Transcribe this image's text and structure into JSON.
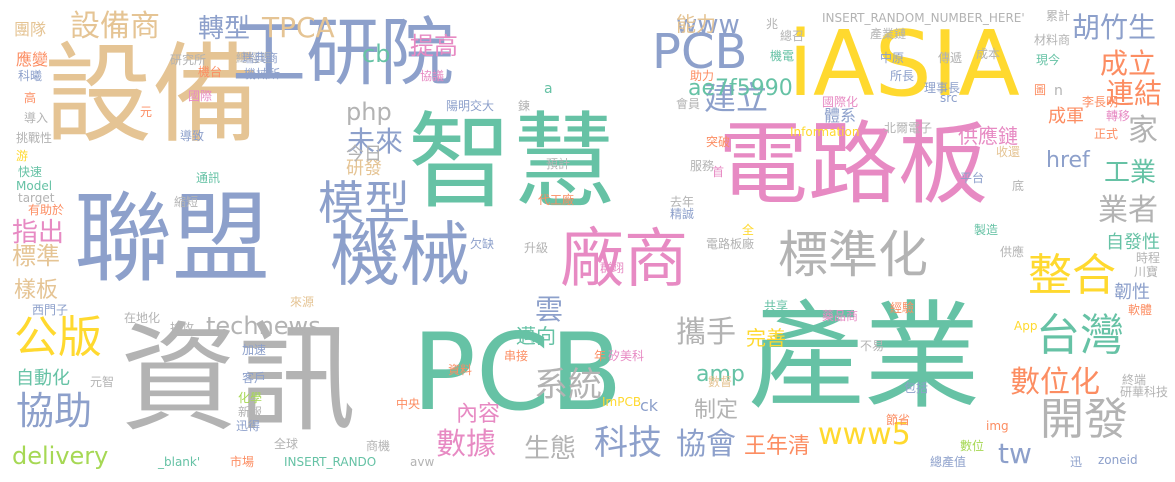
{
  "palette": {
    "green": "#66c2a5",
    "orange": "#fc8d62",
    "blue": "#8da0cb",
    "pink": "#e78ac3",
    "lime": "#a6d854",
    "yellow": "#ffd92f",
    "tan": "#e5c494",
    "gray": "#b3b3b3"
  },
  "words": [
    {
      "id": "w1",
      "text": "智慧",
      "color": "green"
    },
    {
      "id": "w2",
      "text": "電路板",
      "color": "pink"
    },
    {
      "id": "w3",
      "text": "PCB",
      "color": "green"
    },
    {
      "id": "w4",
      "text": "產業",
      "color": "green"
    },
    {
      "id": "w5",
      "text": "設備",
      "color": "tan"
    },
    {
      "id": "w6",
      "text": "資訊",
      "color": "gray"
    },
    {
      "id": "w7",
      "text": "聯盟",
      "color": "blue"
    },
    {
      "id": "w8",
      "text": "iASIA",
      "color": "yellow"
    },
    {
      "id": "w9",
      "text": "工研院",
      "color": "blue"
    },
    {
      "id": "w10",
      "text": "機械",
      "color": "blue"
    },
    {
      "id": "w11",
      "text": "廠商",
      "color": "pink"
    },
    {
      "id": "w12",
      "text": "標準化",
      "color": "gray"
    },
    {
      "id": "w13",
      "text": "PCB",
      "color": "blue"
    },
    {
      "id": "w14",
      "text": "模型",
      "color": "blue"
    },
    {
      "id": "w15",
      "text": "整合",
      "color": "yellow"
    },
    {
      "id": "w16",
      "text": "台灣",
      "color": "green"
    },
    {
      "id": "w17",
      "text": "公版",
      "color": "yellow"
    },
    {
      "id": "w18",
      "text": "開發",
      "color": "gray"
    },
    {
      "id": "w19",
      "text": "協助",
      "color": "blue"
    },
    {
      "id": "w20",
      "text": "設備商",
      "color": "tan"
    },
    {
      "id": "w21",
      "text": "TPCA",
      "color": "tan"
    },
    {
      "id": "w22",
      "text": "轉型",
      "color": "blue"
    },
    {
      "id": "w23",
      "text": "胡竹生",
      "color": "blue"
    },
    {
      "id": "w24",
      "text": "成立",
      "color": "orange"
    },
    {
      "id": "w25",
      "text": "連結",
      "color": "orange"
    },
    {
      "id": "w26",
      "text": "家",
      "color": "gray"
    },
    {
      "id": "w27",
      "text": "業者",
      "color": "gray"
    },
    {
      "id": "w28",
      "text": "工業",
      "color": "green"
    },
    {
      "id": "w29",
      "text": "www",
      "color": "blue"
    },
    {
      "id": "w30",
      "text": "建立",
      "color": "blue"
    },
    {
      "id": "w31",
      "text": "未來",
      "color": "blue"
    },
    {
      "id": "w32",
      "text": "technews",
      "color": "gray"
    },
    {
      "id": "w33",
      "text": "系統",
      "color": "gray"
    },
    {
      "id": "w34",
      "text": "攜手",
      "color": "gray"
    },
    {
      "id": "w35",
      "text": "數位化",
      "color": "orange"
    },
    {
      "id": "w36",
      "text": "數據",
      "color": "pink"
    },
    {
      "id": "w37",
      "text": "科技",
      "color": "blue"
    },
    {
      "id": "w38",
      "text": "協會",
      "color": "blue"
    },
    {
      "id": "w39",
      "text": "生態",
      "color": "gray"
    },
    {
      "id": "w40",
      "text": "www5",
      "color": "yellow"
    },
    {
      "id": "w41",
      "text": "tw",
      "color": "blue"
    },
    {
      "id": "w42",
      "text": "王年清",
      "color": "orange"
    },
    {
      "id": "w43",
      "text": "delivery",
      "color": "lime"
    },
    {
      "id": "w44",
      "text": "指出",
      "color": "pink"
    },
    {
      "id": "w45",
      "text": "標準",
      "color": "tan"
    },
    {
      "id": "w46",
      "text": "cb",
      "color": "green"
    },
    {
      "id": "w47",
      "text": "提高",
      "color": "pink"
    },
    {
      "id": "w48",
      "text": "ae7f5990",
      "color": "green"
    },
    {
      "id": "w49",
      "text": "php",
      "color": "gray"
    },
    {
      "id": "w50",
      "text": "雲",
      "color": "blue"
    },
    {
      "id": "w51",
      "text": "內容",
      "color": "pink"
    },
    {
      "id": "w52",
      "text": "制定",
      "color": "gray"
    },
    {
      "id": "w53",
      "text": "amp",
      "color": "green"
    },
    {
      "id": "w54",
      "text": "供應鏈",
      "color": "pink"
    },
    {
      "id": "w55",
      "text": "成軍",
      "color": "orange"
    },
    {
      "id": "w56",
      "text": "href",
      "color": "blue"
    },
    {
      "id": "w57",
      "text": "韌性",
      "color": "blue"
    },
    {
      "id": "w58",
      "text": "自發性",
      "color": "green"
    },
    {
      "id": "w59",
      "text": "樣板",
      "color": "tan"
    },
    {
      "id": "w60",
      "text": "自動化",
      "color": "green"
    },
    {
      "id": "w61",
      "text": "能力",
      "color": "tan"
    },
    {
      "id": "w62",
      "text": "研發",
      "color": "tan"
    },
    {
      "id": "w63",
      "text": "邁向",
      "color": "green"
    },
    {
      "id": "w64",
      "text": "完善",
      "color": "yellow"
    },
    {
      "id": "w65",
      "text": "今日",
      "color": "gray"
    },
    {
      "id": "w66",
      "text": "INSERT_RANDOM_NUMBER_HERE'",
      "color": "gray"
    },
    {
      "id": "w67",
      "text": "兆",
      "color": "gray"
    },
    {
      "id": "w68",
      "text": "累計",
      "color": "gray"
    },
    {
      "id": "w69",
      "text": "團隊",
      "color": "tan"
    },
    {
      "id": "w70",
      "text": "應變",
      "color": "orange"
    },
    {
      "id": "w71",
      "text": "科曦",
      "color": "blue"
    },
    {
      "id": "w72",
      "text": "總經理",
      "color": "gray"
    },
    {
      "id": "w73",
      "text": "研究所",
      "color": "gray"
    },
    {
      "id": "w74",
      "text": "機械所",
      "color": "blue"
    },
    {
      "id": "w75",
      "text": "協議",
      "color": "pink"
    },
    {
      "id": "w76",
      "text": "陽明交大",
      "color": "blue"
    },
    {
      "id": "w77",
      "text": "機台",
      "color": "orange"
    },
    {
      "id": "w78",
      "text": "國際",
      "color": "pink"
    },
    {
      "id": "w79",
      "text": "導入",
      "color": "gray"
    },
    {
      "id": "w80",
      "text": "挑戰性",
      "color": "gray"
    },
    {
      "id": "w81",
      "text": "快速",
      "color": "green"
    },
    {
      "id": "w82",
      "text": "Model",
      "color": "green"
    },
    {
      "id": "w83",
      "text": "target",
      "color": "gray"
    },
    {
      "id": "w84",
      "text": "有助於",
      "color": "orange"
    },
    {
      "id": "w85",
      "text": "西門子",
      "color": "blue"
    },
    {
      "id": "w86",
      "text": "在地化",
      "color": "gray"
    },
    {
      "id": "w87",
      "text": "元智",
      "color": "gray"
    },
    {
      "id": "w88",
      "text": "加速",
      "color": "blue"
    },
    {
      "id": "w89",
      "text": "客戶",
      "color": "blue"
    },
    {
      "id": "w90",
      "text": "迅得",
      "color": "blue"
    },
    {
      "id": "w91",
      "text": "瑞典商",
      "color": "blue"
    },
    {
      "id": "w92",
      "text": "市場",
      "color": "orange"
    },
    {
      "id": "w93",
      "text": "INSERT_RANDO",
      "color": "green"
    },
    {
      "id": "w94",
      "text": "_blank'",
      "color": "green"
    },
    {
      "id": "w95",
      "text": "avw",
      "color": "gray"
    },
    {
      "id": "w96",
      "text": "ImPCB",
      "color": "yellow"
    },
    {
      "id": "w97",
      "text": "總產值",
      "color": "blue"
    },
    {
      "id": "w98",
      "text": "數位",
      "color": "lime"
    },
    {
      "id": "w99",
      "text": "zoneid",
      "color": "blue"
    },
    {
      "id": "w100",
      "text": "研華科技",
      "color": "gray"
    },
    {
      "id": "w101",
      "text": "軟體",
      "color": "orange"
    },
    {
      "id": "w102",
      "text": "川寶",
      "color": "gray"
    },
    {
      "id": "w103",
      "text": "產業鏈",
      "color": "gray"
    },
    {
      "id": "w104",
      "text": "材料商",
      "color": "gray"
    },
    {
      "id": "w105",
      "text": "現今",
      "color": "green"
    },
    {
      "id": "w106",
      "text": "傳遞",
      "color": "gray"
    },
    {
      "id": "w107",
      "text": "理事長",
      "color": "blue"
    },
    {
      "id": "w108",
      "text": "src",
      "color": "blue"
    },
    {
      "id": "w109",
      "text": "李長明",
      "color": "orange"
    },
    {
      "id": "w110",
      "text": "轉移",
      "color": "pink"
    },
    {
      "id": "w111",
      "text": "正式",
      "color": "orange"
    },
    {
      "id": "w112",
      "text": "北爾電子",
      "color": "gray"
    },
    {
      "id": "w113",
      "text": "國際化",
      "color": "pink"
    },
    {
      "id": "w114",
      "text": "體系",
      "color": "blue"
    },
    {
      "id": "w115",
      "text": "Information",
      "color": "yellow"
    },
    {
      "id": "w116",
      "text": "收還",
      "color": "tan"
    },
    {
      "id": "w117",
      "text": "平台",
      "color": "blue"
    },
    {
      "id": "w118",
      "text": "製造",
      "color": "green"
    },
    {
      "id": "w119",
      "text": "供應",
      "color": "gray"
    },
    {
      "id": "w120",
      "text": "時程",
      "color": "gray"
    },
    {
      "id": "w121",
      "text": "藥品商",
      "color": "pink"
    },
    {
      "id": "w122",
      "text": "經驗",
      "color": "orange"
    },
    {
      "id": "w123",
      "text": "App",
      "color": "yellow"
    },
    {
      "id": "w124",
      "text": "代工廠",
      "color": "orange"
    },
    {
      "id": "w125",
      "text": "去年",
      "color": "gray"
    },
    {
      "id": "w126",
      "text": "精誠",
      "color": "blue"
    },
    {
      "id": "w127",
      "text": "電路板廠",
      "color": "gray"
    },
    {
      "id": "w128",
      "text": "升級",
      "color": "gray"
    },
    {
      "id": "w129",
      "text": "群翊",
      "color": "pink"
    },
    {
      "id": "w130",
      "text": "欠缺",
      "color": "blue"
    },
    {
      "id": "w131",
      "text": "來源",
      "color": "tan"
    },
    {
      "id": "w132",
      "text": "共享",
      "color": "green"
    },
    {
      "id": "w133",
      "text": "串接",
      "color": "orange"
    },
    {
      "id": "w134",
      "text": "矽美科",
      "color": "pink"
    },
    {
      "id": "w135",
      "text": "資料",
      "color": "orange"
    },
    {
      "id": "w136",
      "text": "中央",
      "color": "orange"
    },
    {
      "id": "w137",
      "text": "ck",
      "color": "blue"
    },
    {
      "id": "w138",
      "text": "數督",
      "color": "tan"
    },
    {
      "id": "w139",
      "text": "節省",
      "color": "orange"
    },
    {
      "id": "w140",
      "text": "包括",
      "color": "blue"
    },
    {
      "id": "w141",
      "text": "img",
      "color": "orange"
    },
    {
      "id": "w142",
      "text": "迅",
      "color": "blue"
    },
    {
      "id": "w143",
      "text": "終端",
      "color": "gray"
    },
    {
      "id": "w144",
      "text": "不易",
      "color": "gray"
    },
    {
      "id": "w145",
      "text": "服務",
      "color": "gray"
    },
    {
      "id": "w146",
      "text": "預計",
      "color": "gray"
    },
    {
      "id": "w147",
      "text": "突破",
      "color": "orange"
    },
    {
      "id": "w148",
      "text": "會員",
      "color": "gray"
    },
    {
      "id": "w149",
      "text": "所長",
      "color": "blue"
    },
    {
      "id": "w150",
      "text": "中原",
      "color": "blue"
    },
    {
      "id": "w151",
      "text": "機電",
      "color": "green"
    },
    {
      "id": "w152",
      "text": "總召",
      "color": "gray"
    },
    {
      "id": "w153",
      "text": "助力",
      "color": "orange"
    },
    {
      "id": "w154",
      "text": "成本",
      "color": "gray"
    },
    {
      "id": "w155",
      "text": "導致",
      "color": "blue"
    },
    {
      "id": "w156",
      "text": "通訊",
      "color": "green"
    },
    {
      "id": "w157",
      "text": "縮短",
      "color": "gray"
    },
    {
      "id": "w158",
      "text": "全球",
      "color": "gray"
    },
    {
      "id": "w159",
      "text": "商機",
      "color": "gray"
    },
    {
      "id": "w160",
      "text": "新報",
      "color": "gray"
    },
    {
      "id": "w161",
      "text": "化學",
      "color": "lime"
    },
    {
      "id": "w162",
      "text": "搶攻",
      "color": "gray"
    },
    {
      "id": "w163",
      "text": "游",
      "color": "yellow"
    },
    {
      "id": "w164",
      "text": "高",
      "color": "orange"
    },
    {
      "id": "w165",
      "text": "元",
      "color": "orange"
    },
    {
      "id": "w166",
      "text": "鍊",
      "color": "gray"
    },
    {
      "id": "w167",
      "text": "a",
      "color": "green"
    },
    {
      "id": "w168",
      "text": "n",
      "color": "gray"
    },
    {
      "id": "w169",
      "text": "全",
      "color": "yellow"
    },
    {
      "id": "w170",
      "text": "底",
      "color": "gray"
    },
    {
      "id": "w171",
      "text": "首",
      "color": "pink"
    },
    {
      "id": "w172",
      "text": "年",
      "color": "orange"
    },
    {
      "id": "w173",
      "text": "圖",
      "color": "orange"
    }
  ]
}
